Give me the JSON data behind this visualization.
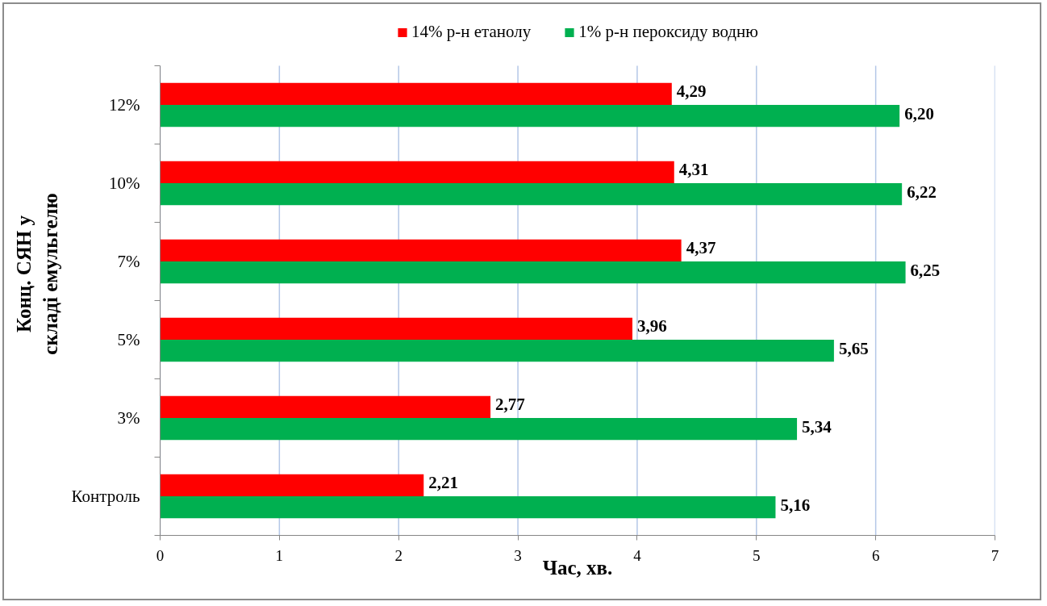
{
  "chart_data": {
    "type": "bar",
    "orientation": "horizontal",
    "categories": [
      "12%",
      "10%",
      "7%",
      "5%",
      "3%",
      "Контроль"
    ],
    "series": [
      {
        "name": "14% р-н етанолу",
        "color": "#ff0000",
        "values": [
          4.29,
          4.31,
          4.37,
          3.96,
          2.77,
          2.21
        ],
        "value_labels": [
          "4,29",
          "4,31",
          "4,37",
          "3,96",
          "2,77",
          "2,21"
        ]
      },
      {
        "name": "1% р-н пероксиду водню",
        "color": "#00b050",
        "values": [
          6.2,
          6.22,
          6.25,
          5.65,
          5.34,
          5.16
        ],
        "value_labels": [
          "6,20",
          "6,22",
          "6,25",
          "5,65",
          "5,34",
          "5,16"
        ]
      }
    ],
    "xlabel": "Час, хв.",
    "ylabel": "Конц. СЯН у складі емульгелю",
    "xlim": [
      0,
      7
    ],
    "xticks": [
      0,
      1,
      2,
      3,
      4,
      5,
      6,
      7
    ],
    "grid": "x",
    "legend": "top"
  }
}
